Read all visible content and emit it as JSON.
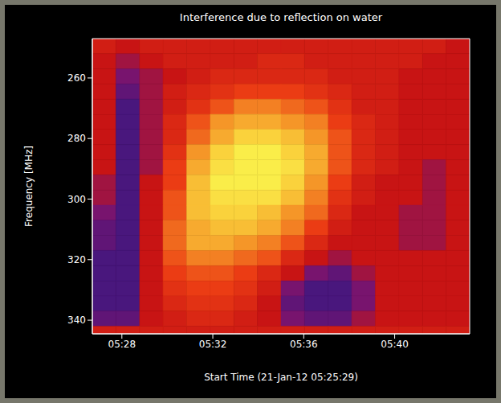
{
  "chart_data": {
    "type": "heatmap",
    "title": "Interference due to reflection on water",
    "x_label": "Start Time (21-Jan-12 05:25:29)",
    "y_label": "Frequency [MHz]",
    "xlim": [
      326.7,
      343.3
    ],
    "ylim": [
      247,
      344.5
    ],
    "xticks": [
      {
        "value": 328,
        "label": "05:28"
      },
      {
        "value": 332,
        "label": "05:32"
      },
      {
        "value": 336,
        "label": "05:36"
      },
      {
        "value": 340,
        "label": "05:40"
      }
    ],
    "yticks": [
      260,
      280,
      300,
      320,
      340
    ],
    "zlim": [
      0,
      10
    ],
    "x_bins": [
      326.7,
      327.74,
      328.78,
      329.81,
      330.85,
      331.89,
      332.93,
      333.96,
      335,
      336.04,
      337.08,
      338.11,
      339.15,
      340.19,
      341.23,
      342.26,
      343.3
    ],
    "y_bins": [
      247,
      252,
      257,
      262,
      267,
      272,
      277,
      282,
      287,
      292,
      297,
      302,
      307,
      312,
      317,
      322,
      327,
      332,
      337,
      342,
      344.5
    ],
    "cells": [
      [
        3.5,
        3,
        3.5,
        3.5,
        3.5,
        3.5,
        3.5,
        3.5,
        3.5,
        3.5,
        3.5,
        3.5,
        3.5,
        3.5,
        3.5,
        3
      ],
      [
        3,
        2.5,
        3,
        3.5,
        3.5,
        3.5,
        3.5,
        4,
        4,
        3.5,
        3.5,
        3.5,
        3.5,
        3.5,
        3,
        3
      ],
      [
        3,
        2,
        2.5,
        3,
        3.5,
        4,
        4,
        4,
        4,
        4,
        3.5,
        3.5,
        3.5,
        3,
        3,
        3
      ],
      [
        3,
        1.5,
        2.5,
        3.5,
        4,
        4.5,
        5,
        5,
        5,
        4.5,
        4,
        3.5,
        3.5,
        3,
        3,
        3
      ],
      [
        3,
        1,
        2.5,
        3.5,
        4.5,
        5.5,
        6.5,
        6.5,
        6,
        5.5,
        4.5,
        3.5,
        3.5,
        3,
        3,
        3
      ],
      [
        3,
        1,
        2.5,
        4,
        5.5,
        7,
        7.5,
        7.5,
        7,
        6.5,
        5,
        4,
        3.5,
        3,
        3,
        3
      ],
      [
        3,
        1,
        2.5,
        4,
        6,
        7.5,
        8.5,
        8.5,
        8,
        7,
        5.5,
        4,
        3.5,
        3,
        3,
        3
      ],
      [
        3,
        1,
        2.5,
        4.5,
        7,
        8.5,
        9.5,
        9.5,
        8.5,
        7.5,
        5.5,
        4,
        3.5,
        3,
        3,
        3
      ],
      [
        3,
        1,
        2.5,
        5,
        7.5,
        9,
        9.5,
        9.5,
        9,
        7.5,
        5.5,
        4,
        3.5,
        3,
        2.5,
        3
      ],
      [
        2.5,
        1,
        3,
        5,
        8,
        9.5,
        9.5,
        9.5,
        8.5,
        7,
        5,
        3.5,
        3,
        3,
        2.5,
        3
      ],
      [
        2.5,
        1,
        3,
        5.5,
        8,
        9,
        9,
        9,
        8,
        6.5,
        4.5,
        3.5,
        3,
        3,
        2.5,
        3
      ],
      [
        2,
        1,
        3,
        5.5,
        8,
        8.5,
        8.5,
        8,
        7,
        6,
        4,
        3,
        3,
        2.5,
        2.5,
        3
      ],
      [
        1.5,
        1,
        3,
        6,
        7.5,
        8,
        8,
        7.5,
        6.5,
        5,
        3.5,
        3,
        3,
        2.5,
        2.5,
        3
      ],
      [
        1.5,
        1,
        3,
        6,
        7.5,
        7.5,
        7,
        6.5,
        5.5,
        4,
        3,
        3,
        3,
        2.5,
        2.5,
        3
      ],
      [
        1,
        1,
        3,
        5.5,
        6.5,
        6.5,
        6,
        5.5,
        4,
        3,
        2.5,
        3,
        3,
        3,
        3,
        3
      ],
      [
        1,
        1,
        3,
        5,
        5.5,
        5.5,
        5,
        4,
        3,
        2,
        1.5,
        2.5,
        3,
        3,
        3,
        3
      ],
      [
        1,
        1,
        3,
        4.5,
        5,
        5,
        4.5,
        3.5,
        2,
        1,
        1,
        2,
        3,
        3,
        3,
        3
      ],
      [
        1,
        1,
        3,
        4,
        4.5,
        4.5,
        4,
        3,
        1.5,
        1,
        1,
        2,
        3,
        3,
        3,
        3
      ],
      [
        1.5,
        1.5,
        3,
        3.5,
        4,
        4,
        3.5,
        3,
        2,
        1.5,
        1.5,
        2.5,
        3,
        3,
        3,
        3
      ],
      [
        3.5,
        3.5,
        3.5,
        3.5,
        3.5,
        3.5,
        3.5,
        3.5,
        3.5,
        3.5,
        3.5,
        3.5,
        3.5,
        3.5,
        3.5,
        3.5
      ]
    ]
  }
}
